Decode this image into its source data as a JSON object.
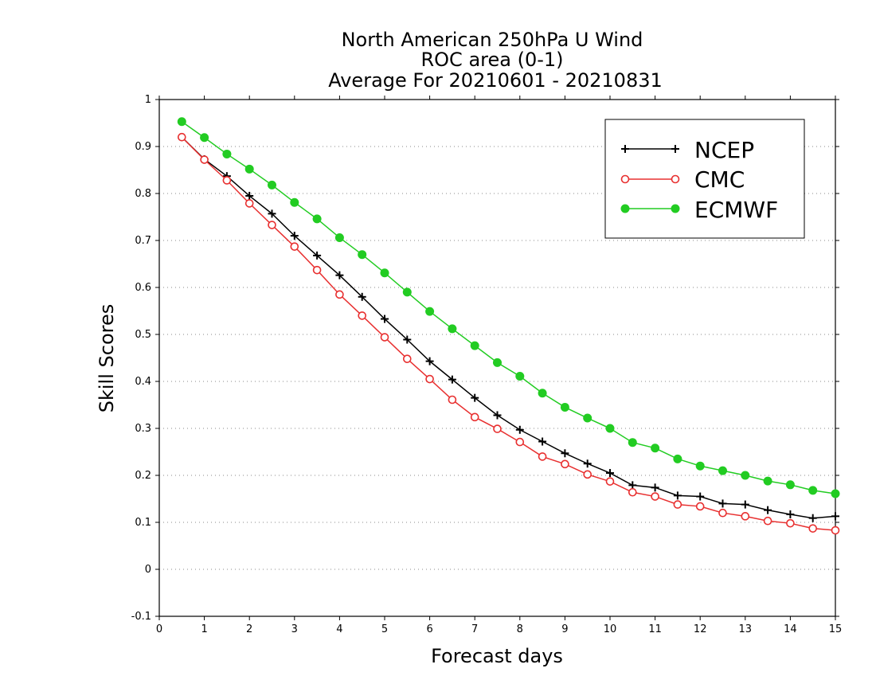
{
  "chart_data": {
    "type": "line",
    "title": [
      "North American 250hPa U Wind",
      "ROC area (0-1)",
      "Average For 20210601 - 20210831"
    ],
    "xlabel": "Forecast days",
    "ylabel": "Skill Scores",
    "xlim": [
      0,
      15
    ],
    "ylim": [
      -0.1,
      1
    ],
    "x_ticks": [
      "0",
      "1",
      "2",
      "3",
      "4",
      "5",
      "6",
      "7",
      "8",
      "9",
      "10",
      "11",
      "12",
      "13",
      "14",
      "15"
    ],
    "y_ticks": [
      "-0.1",
      "0",
      "0.1",
      "0.2",
      "0.3",
      "0.4",
      "0.5",
      "0.6",
      "0.7",
      "0.8",
      "0.9",
      "1"
    ],
    "grid": "horizontal dotted",
    "legend_position": "top-right",
    "x": [
      0.5,
      1,
      1.5,
      2,
      2.5,
      3,
      3.5,
      4,
      4.5,
      5,
      5.5,
      6,
      6.5,
      7,
      7.5,
      8,
      8.5,
      9,
      9.5,
      10,
      10.5,
      11,
      11.5,
      12,
      12.5,
      13,
      13.5,
      14,
      14.5,
      15
    ],
    "series": [
      {
        "name": "NCEP",
        "color": "#000000",
        "marker": "plus",
        "values": [
          0.92,
          0.873,
          0.837,
          0.795,
          0.757,
          0.71,
          0.668,
          0.626,
          0.58,
          0.533,
          0.489,
          0.443,
          0.404,
          0.365,
          0.328,
          0.297,
          0.272,
          0.247,
          0.225,
          0.205,
          0.179,
          0.174,
          0.157,
          0.155,
          0.14,
          0.138,
          0.126,
          0.117,
          0.109,
          0.113
        ]
      },
      {
        "name": "CMC",
        "color": "#e83030",
        "marker": "open-circle",
        "values": [
          0.92,
          0.872,
          0.828,
          0.779,
          0.733,
          0.687,
          0.637,
          0.585,
          0.54,
          0.494,
          0.448,
          0.405,
          0.361,
          0.324,
          0.299,
          0.271,
          0.24,
          0.224,
          0.202,
          0.187,
          0.164,
          0.155,
          0.138,
          0.134,
          0.12,
          0.113,
          0.103,
          0.098,
          0.087,
          0.083
        ]
      },
      {
        "name": "ECMWF",
        "color": "#22cc22",
        "marker": "filled-circle",
        "values": [
          0.953,
          0.919,
          0.884,
          0.852,
          0.818,
          0.781,
          0.746,
          0.706,
          0.67,
          0.631,
          0.59,
          0.549,
          0.512,
          0.476,
          0.44,
          0.411,
          0.375,
          0.345,
          0.322,
          0.3,
          0.27,
          0.258,
          0.235,
          0.22,
          0.21,
          0.2,
          0.188,
          0.18,
          0.168,
          0.161
        ]
      }
    ]
  }
}
